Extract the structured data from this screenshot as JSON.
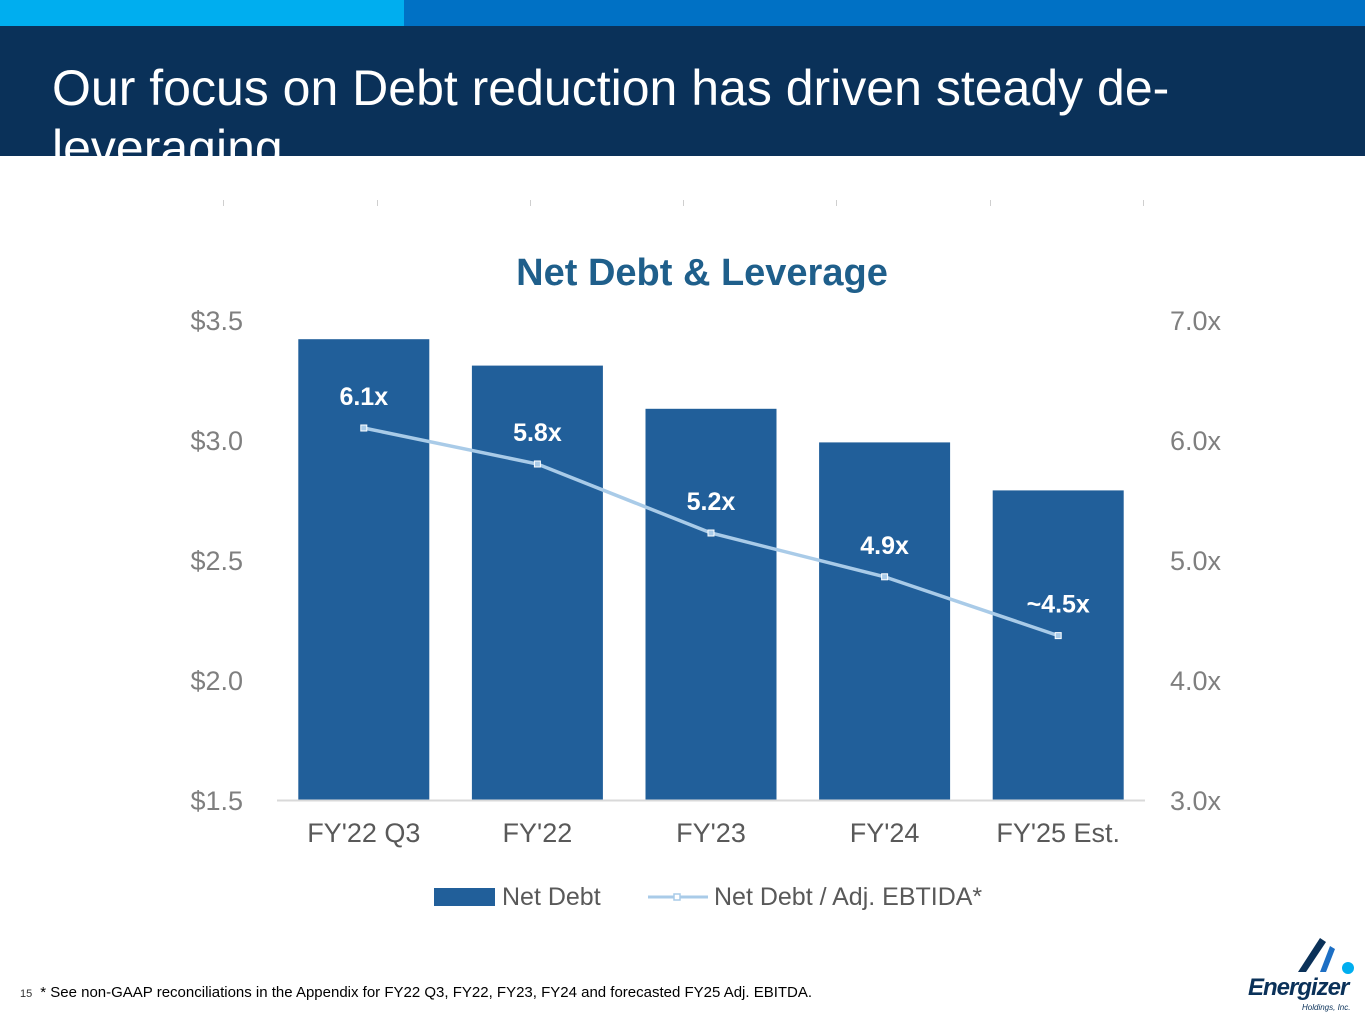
{
  "slide": {
    "title": "Our focus on Debt reduction has driven steady de-leveraging",
    "page_number": "15",
    "footnote": "* See non-GAAP reconciliations in the Appendix for FY22 Q3, FY22, FY23, FY24 and forecasted FY25 Adj. EBITDA."
  },
  "logo": {
    "name": "Energizer",
    "subtitle": "Holdings, Inc."
  },
  "colors": {
    "header_bg": "#0a3159",
    "bar": "#215f9a",
    "line": "#a9cbe8",
    "title": "#1f5f8b"
  },
  "chart_data": {
    "type": "bar",
    "title": "Net Debt & Leverage",
    "categories": [
      "FY'22 Q3",
      "FY'22",
      "FY'23",
      "FY'24",
      "FY'25 Est."
    ],
    "series": [
      {
        "name": "Net Debt",
        "type": "bar",
        "axis": "left",
        "values": [
          3.42,
          3.31,
          3.13,
          2.99,
          2.79
        ]
      },
      {
        "name": "Net Debt / Adj. EBTIDA*",
        "type": "line",
        "axis": "right",
        "values": [
          6.1,
          5.8,
          5.225,
          4.86,
          4.37
        ],
        "labels": [
          "6.1x",
          "5.8x",
          "5.2x",
          "4.9x",
          "~4.5x"
        ]
      }
    ],
    "y_left": {
      "min": 1.5,
      "max": 3.5,
      "ticks": [
        "$3.5",
        "$3.0",
        "$2.5",
        "$2.0",
        "$1.5"
      ]
    },
    "y_right": {
      "min": 3.0,
      "max": 7.0,
      "ticks": [
        "7.0x",
        "6.0x",
        "5.0x",
        "4.0x",
        "3.0x"
      ]
    },
    "legend": [
      "Net Debt",
      "Net Debt / Adj. EBTIDA*"
    ],
    "legend_position": "bottom",
    "grid": false
  }
}
